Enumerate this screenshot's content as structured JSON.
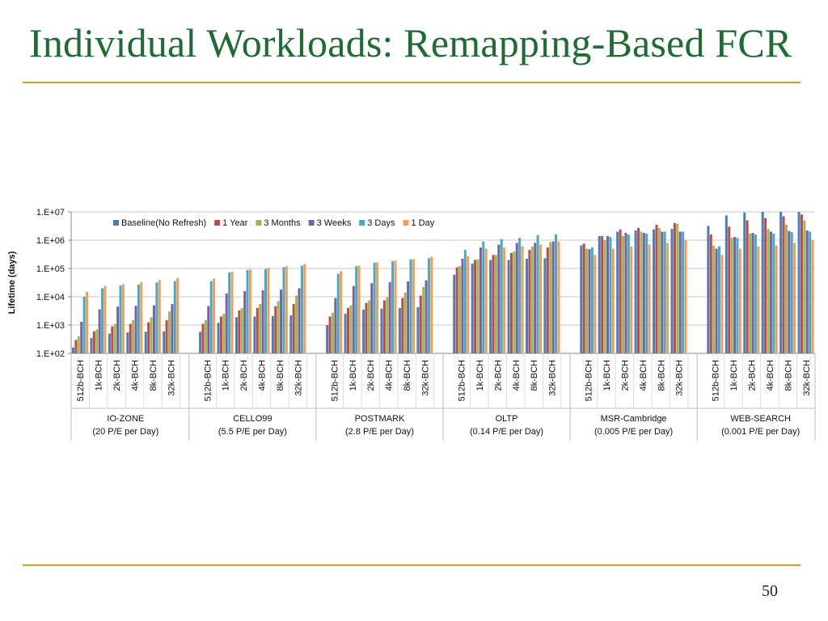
{
  "slide": {
    "title": "Individual Workloads: Remapping-Based FCR",
    "page_number": "50"
  },
  "colors": {
    "title": "#1e6b33",
    "rule": "#c9a227"
  },
  "chart_data": {
    "type": "bar",
    "scale": "log",
    "ylabel": "Lifetime (days)",
    "y_ticks": [
      "1.E+02",
      "1.E+03",
      "1.E+04",
      "1.E+05",
      "1.E+06",
      "1.E+07"
    ],
    "ylim": [
      100,
      10000000
    ],
    "legend_position": "top",
    "grid": true,
    "series": [
      {
        "name": "Baseline(No Refresh)",
        "color": "#4a7ebb"
      },
      {
        "name": "1 Year",
        "color": "#be4b48"
      },
      {
        "name": "3 Months",
        "color": "#98b954"
      },
      {
        "name": "3 Weeks",
        "color": "#7d60a0"
      },
      {
        "name": "3 Days",
        "color": "#46aac5"
      },
      {
        "name": "1 Day",
        "color": "#f59d56"
      }
    ],
    "groups": [
      {
        "name": "IO-ZONE",
        "sub": "(20 P/E per Day)",
        "categories": [
          {
            "label": "512b-BCH",
            "values": [
              160,
              300,
              400,
              1300,
              10000,
              15000
            ]
          },
          {
            "label": "1k-BCH",
            "values": [
              350,
              600,
              700,
              3600,
              20000,
              24000
            ]
          },
          {
            "label": "2k-BCH",
            "values": [
              500,
              900,
              1100,
              4500,
              25000,
              28000
            ]
          },
          {
            "label": "4k-BCH",
            "values": [
              550,
              1100,
              1500,
              4800,
              27000,
              33000
            ]
          },
          {
            "label": "8k-BCH",
            "values": [
              580,
              1250,
              1900,
              5000,
              32000,
              39000
            ]
          },
          {
            "label": "32k-BCH",
            "values": [
              600,
              1500,
              3000,
              5500,
              36000,
              46000
            ]
          }
        ]
      },
      {
        "name": "CELLO99",
        "sub": "(5.5 P/E per Day)",
        "categories": [
          {
            "label": "512b-BCH",
            "values": [
              580,
              1100,
              1500,
              4700,
              36000,
              44000
            ]
          },
          {
            "label": "1k-BCH",
            "values": [
              1200,
              2000,
              2500,
              13000,
              72000,
              78000
            ]
          },
          {
            "label": "2k-BCH",
            "values": [
              1900,
              3300,
              4000,
              16000,
              88000,
              92000
            ]
          },
          {
            "label": "4k-BCH",
            "values": [
              2000,
              4000,
              5500,
              17000,
              95000,
              105000
            ]
          },
          {
            "label": "8k-BCH",
            "values": [
              2100,
              4600,
              7000,
              18000,
              110000,
              120000
            ]
          },
          {
            "label": "32k-BCH",
            "values": [
              2200,
              5600,
              11000,
              20000,
              125000,
              145000
            ]
          }
        ]
      },
      {
        "name": "POSTMARK",
        "sub": "(2.8 P/E per Day)",
        "categories": [
          {
            "label": "512b-BCH",
            "values": [
              1000,
              2000,
              2700,
              9000,
              65000,
              80000
            ]
          },
          {
            "label": "1k-BCH",
            "values": [
              2500,
              4000,
              5000,
              24000,
              120000,
              125000
            ]
          },
          {
            "label": "2k-BCH",
            "values": [
              3500,
              6000,
              7500,
              30000,
              160000,
              165000
            ]
          },
          {
            "label": "4k-BCH",
            "values": [
              3800,
              7500,
              9500,
              33000,
              180000,
              190000
            ]
          },
          {
            "label": "8k-BCH",
            "values": [
              4000,
              9000,
              14000,
              35000,
              210000,
              215000
            ]
          },
          {
            "label": "32k-BCH",
            "values": [
              4300,
              11000,
              22000,
              38000,
              230000,
              260000
            ]
          }
        ]
      },
      {
        "name": "OLTP",
        "sub": "(0.14 P/E per Day)",
        "categories": [
          {
            "label": "512b-BCH",
            "values": [
              60000,
              110000,
              120000,
              220000,
              450000,
              270000
            ]
          },
          {
            "label": "1k-BCH",
            "values": [
              150000,
              200000,
              210000,
              550000,
              900000,
              500000
            ]
          },
          {
            "label": "2k-BCH",
            "values": [
              200000,
              300000,
              300000,
              700000,
              1100000,
              550000
            ]
          },
          {
            "label": "4k-BCH",
            "values": [
              200000,
              350000,
              400000,
              800000,
              1200000,
              600000
            ]
          },
          {
            "label": "8k-BCH",
            "values": [
              220000,
              450000,
              600000,
              800000,
              1500000,
              700000
            ]
          },
          {
            "label": "32k-BCH",
            "values": [
              230000,
              550000,
              850000,
              900000,
              1600000,
              900000
            ]
          }
        ]
      },
      {
        "name": "MSR-Cambridge",
        "sub": "(0.005 P/E per Day)",
        "categories": [
          {
            "label": "512b-BCH",
            "values": [
              650000,
              750000,
              500000,
              480000,
              550000,
              300000
            ]
          },
          {
            "label": "1k-BCH",
            "values": [
              1400000,
              1400000,
              1000000,
              1400000,
              1300000,
              500000
            ]
          },
          {
            "label": "2k-BCH",
            "values": [
              2000000,
              2400000,
              1400000,
              1800000,
              1600000,
              600000
            ]
          },
          {
            "label": "4k-BCH",
            "values": [
              2200000,
              2700000,
              2000000,
              1800000,
              1700000,
              700000
            ]
          },
          {
            "label": "8k-BCH",
            "values": [
              2400000,
              3500000,
              2700000,
              2000000,
              2000000,
              800000
            ]
          },
          {
            "label": "32k-BCH",
            "values": [
              2500000,
              4000000,
              3800000,
              2000000,
              2000000,
              1000000
            ]
          }
        ]
      },
      {
        "name": "WEB-SEARCH",
        "sub": "(0.001 P/E per Day)",
        "categories": [
          {
            "label": "512b-BCH",
            "values": [
              3200000,
              1600000,
              650000,
              500000,
              600000,
              300000
            ]
          },
          {
            "label": "1k-BCH",
            "values": [
              7500000,
              3000000,
              1200000,
              1300000,
              1200000,
              500000
            ]
          },
          {
            "label": "2k-BCH",
            "values": [
              9500000,
              5000000,
              1700000,
              1800000,
              1600000,
              600000
            ]
          },
          {
            "label": "4k-BCH",
            "values": [
              10000000,
              6000000,
              2500000,
              2000000,
              1700000,
              650000
            ]
          },
          {
            "label": "8k-BCH",
            "values": [
              10000000,
              7000000,
              3500000,
              2100000,
              1900000,
              800000
            ]
          },
          {
            "label": "32k-BCH",
            "values": [
              10000000,
              8000000,
              5000000,
              2200000,
              2000000,
              1000000
            ]
          }
        ]
      }
    ]
  }
}
